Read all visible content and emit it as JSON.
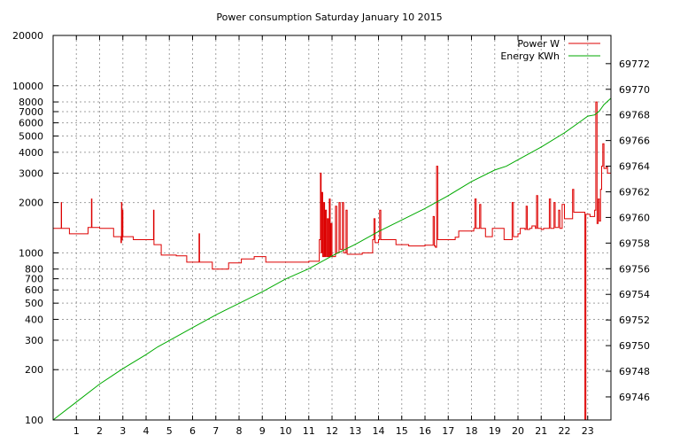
{
  "chart_data": {
    "type": "line",
    "title": "Power consumption Saturday January 10 2015",
    "xlabel": "",
    "ylabel": "",
    "y2label": "",
    "xlim": [
      0,
      24
    ],
    "ylim": [
      100,
      20000
    ],
    "y_scale": "log",
    "y2lim": [
      69744.2,
      69774.2
    ],
    "grid": true,
    "legend_position": "top-right",
    "x_ticks": [
      1,
      2,
      3,
      4,
      5,
      6,
      7,
      8,
      9,
      10,
      11,
      12,
      13,
      14,
      15,
      16,
      17,
      18,
      19,
      20,
      21,
      22,
      23
    ],
    "y_ticks": [
      100,
      200,
      300,
      400,
      500,
      600,
      700,
      800,
      1000,
      2000,
      3000,
      4000,
      5000,
      6000,
      7000,
      8000,
      10000,
      20000
    ],
    "y2_ticks": [
      69746,
      69748,
      69750,
      69752,
      69754,
      69756,
      69758,
      69760,
      69762,
      69764,
      69766,
      69768,
      69770,
      69772
    ],
    "series": [
      {
        "name": "Power W",
        "axis": "left",
        "color": "#dd0000",
        "step": true,
        "points": [
          [
            0,
            1400
          ],
          [
            0.35,
            1400
          ],
          [
            0.35,
            2000
          ],
          [
            0.36,
            1400
          ],
          [
            0.65,
            1400
          ],
          [
            0.7,
            1300
          ],
          [
            1.3,
            1300
          ],
          [
            1.5,
            1420
          ],
          [
            1.63,
            1420
          ],
          [
            1.65,
            2100
          ],
          [
            1.67,
            1420
          ],
          [
            2.0,
            1400
          ],
          [
            2.55,
            1400
          ],
          [
            2.6,
            1250
          ],
          [
            2.9,
            1250
          ],
          [
            2.92,
            1150
          ],
          [
            2.94,
            2000
          ],
          [
            2.96,
            1200
          ],
          [
            2.98,
            1800
          ],
          [
            3.0,
            1250
          ],
          [
            3.4,
            1250
          ],
          [
            3.45,
            1200
          ],
          [
            4.0,
            1200
          ],
          [
            4.3,
            1200
          ],
          [
            4.32,
            1800
          ],
          [
            4.34,
            1120
          ],
          [
            4.6,
            1120
          ],
          [
            4.65,
            970
          ],
          [
            5.2,
            970
          ],
          [
            5.3,
            960
          ],
          [
            5.7,
            960
          ],
          [
            5.75,
            880
          ],
          [
            6.2,
            880
          ],
          [
            6.28,
            1300
          ],
          [
            6.3,
            880
          ],
          [
            6.8,
            880
          ],
          [
            6.85,
            800
          ],
          [
            7.5,
            800
          ],
          [
            7.55,
            870
          ],
          [
            8.0,
            870
          ],
          [
            8.1,
            920
          ],
          [
            8.6,
            920
          ],
          [
            8.65,
            950
          ],
          [
            9.1,
            950
          ],
          [
            9.15,
            880
          ],
          [
            10.0,
            880
          ],
          [
            11.0,
            890
          ],
          [
            11.4,
            890
          ],
          [
            11.45,
            1200
          ],
          [
            11.5,
            3000
          ],
          [
            11.53,
            1000
          ],
          [
            11.56,
            2300
          ],
          [
            11.6,
            950
          ],
          [
            11.64,
            2000
          ],
          [
            11.68,
            950
          ],
          [
            11.72,
            1800
          ],
          [
            11.76,
            950
          ],
          [
            11.8,
            1600
          ],
          [
            11.84,
            950
          ],
          [
            11.88,
            2100
          ],
          [
            11.92,
            950
          ],
          [
            11.96,
            1500
          ],
          [
            12.0,
            950
          ],
          [
            12.1,
            950
          ],
          [
            12.15,
            1900
          ],
          [
            12.2,
            1000
          ],
          [
            12.3,
            2000
          ],
          [
            12.35,
            1050
          ],
          [
            12.45,
            2000
          ],
          [
            12.5,
            1000
          ],
          [
            12.55,
            1000
          ],
          [
            12.6,
            1800
          ],
          [
            12.65,
            980
          ],
          [
            13.0,
            980
          ],
          [
            13.3,
            1000
          ],
          [
            13.7,
            1000
          ],
          [
            13.75,
            1200
          ],
          [
            13.8,
            1600
          ],
          [
            13.85,
            1150
          ],
          [
            14.0,
            1200
          ],
          [
            14.05,
            1800
          ],
          [
            14.1,
            1200
          ],
          [
            14.7,
            1200
          ],
          [
            14.75,
            1120
          ],
          [
            15.2,
            1120
          ],
          [
            15.3,
            1100
          ],
          [
            15.9,
            1100
          ],
          [
            16.0,
            1110
          ],
          [
            16.3,
            1110
          ],
          [
            16.35,
            1650
          ],
          [
            16.4,
            1100
          ],
          [
            16.45,
            1080
          ],
          [
            16.5,
            3300
          ],
          [
            16.55,
            1200
          ],
          [
            17.0,
            1200
          ],
          [
            17.3,
            1240
          ],
          [
            17.45,
            1350
          ],
          [
            18.0,
            1350
          ],
          [
            18.1,
            1400
          ],
          [
            18.15,
            2100
          ],
          [
            18.2,
            1400
          ],
          [
            18.35,
            1950
          ],
          [
            18.4,
            1400
          ],
          [
            18.5,
            1400
          ],
          [
            18.6,
            1250
          ],
          [
            18.8,
            1250
          ],
          [
            18.9,
            1400
          ],
          [
            19.3,
            1400
          ],
          [
            19.4,
            1200
          ],
          [
            19.6,
            1200
          ],
          [
            19.75,
            2000
          ],
          [
            19.8,
            1250
          ],
          [
            20.0,
            1300
          ],
          [
            20.1,
            1400
          ],
          [
            20.3,
            1380
          ],
          [
            20.35,
            1900
          ],
          [
            20.4,
            1380
          ],
          [
            20.5,
            1400
          ],
          [
            20.6,
            1450
          ],
          [
            20.75,
            1400
          ],
          [
            20.8,
            2200
          ],
          [
            20.85,
            1400
          ],
          [
            21.0,
            1380
          ],
          [
            21.1,
            1400
          ],
          [
            21.3,
            1400
          ],
          [
            21.35,
            2100
          ],
          [
            21.4,
            1400
          ],
          [
            21.5,
            1400
          ],
          [
            21.55,
            2000
          ],
          [
            21.6,
            1420
          ],
          [
            21.75,
            1800
          ],
          [
            21.8,
            1400
          ],
          [
            21.9,
            1950
          ],
          [
            22.0,
            1600
          ],
          [
            22.3,
            1600
          ],
          [
            22.35,
            2400
          ],
          [
            22.4,
            1750
          ],
          [
            22.85,
            1750
          ],
          [
            22.88,
            100
          ],
          [
            22.92,
            1700
          ],
          [
            23.0,
            1700
          ],
          [
            23.1,
            1650
          ],
          [
            23.2,
            1650
          ],
          [
            23.3,
            1800
          ],
          [
            23.35,
            8000
          ],
          [
            23.4,
            1500
          ],
          [
            23.45,
            2100
          ],
          [
            23.5,
            1550
          ],
          [
            23.55,
            2400
          ],
          [
            23.6,
            3300
          ],
          [
            23.65,
            4500
          ],
          [
            23.7,
            3200
          ],
          [
            23.8,
            3300
          ],
          [
            23.85,
            3000
          ],
          [
            24.0,
            3000
          ]
        ]
      },
      {
        "name": "Energy KWh",
        "axis": "right",
        "color": "#00aa00",
        "step": false,
        "points": [
          [
            0,
            69744.2
          ],
          [
            1,
            69745.6
          ],
          [
            2,
            69747.0
          ],
          [
            3,
            69748.2
          ],
          [
            4,
            69749.3
          ],
          [
            4.5,
            69749.9
          ],
          [
            5,
            69750.4
          ],
          [
            6,
            69751.4
          ],
          [
            7,
            69752.4
          ],
          [
            8,
            69753.3
          ],
          [
            9,
            69754.2
          ],
          [
            10,
            69755.2
          ],
          [
            11,
            69756.0
          ],
          [
            12,
            69757.0
          ],
          [
            13,
            69757.9
          ],
          [
            14,
            69758.9
          ],
          [
            15,
            69759.8
          ],
          [
            16,
            69760.7
          ],
          [
            17,
            69761.7
          ],
          [
            18,
            69762.8
          ],
          [
            19,
            69763.7
          ],
          [
            19.5,
            69764.0
          ],
          [
            20,
            69764.5
          ],
          [
            21,
            69765.5
          ],
          [
            22,
            69766.6
          ],
          [
            22.7,
            69767.5
          ],
          [
            23,
            69767.9
          ],
          [
            23.3,
            69768.0
          ],
          [
            23.5,
            69768.3
          ],
          [
            23.7,
            69768.8
          ],
          [
            24,
            69769.3
          ]
        ]
      }
    ]
  }
}
